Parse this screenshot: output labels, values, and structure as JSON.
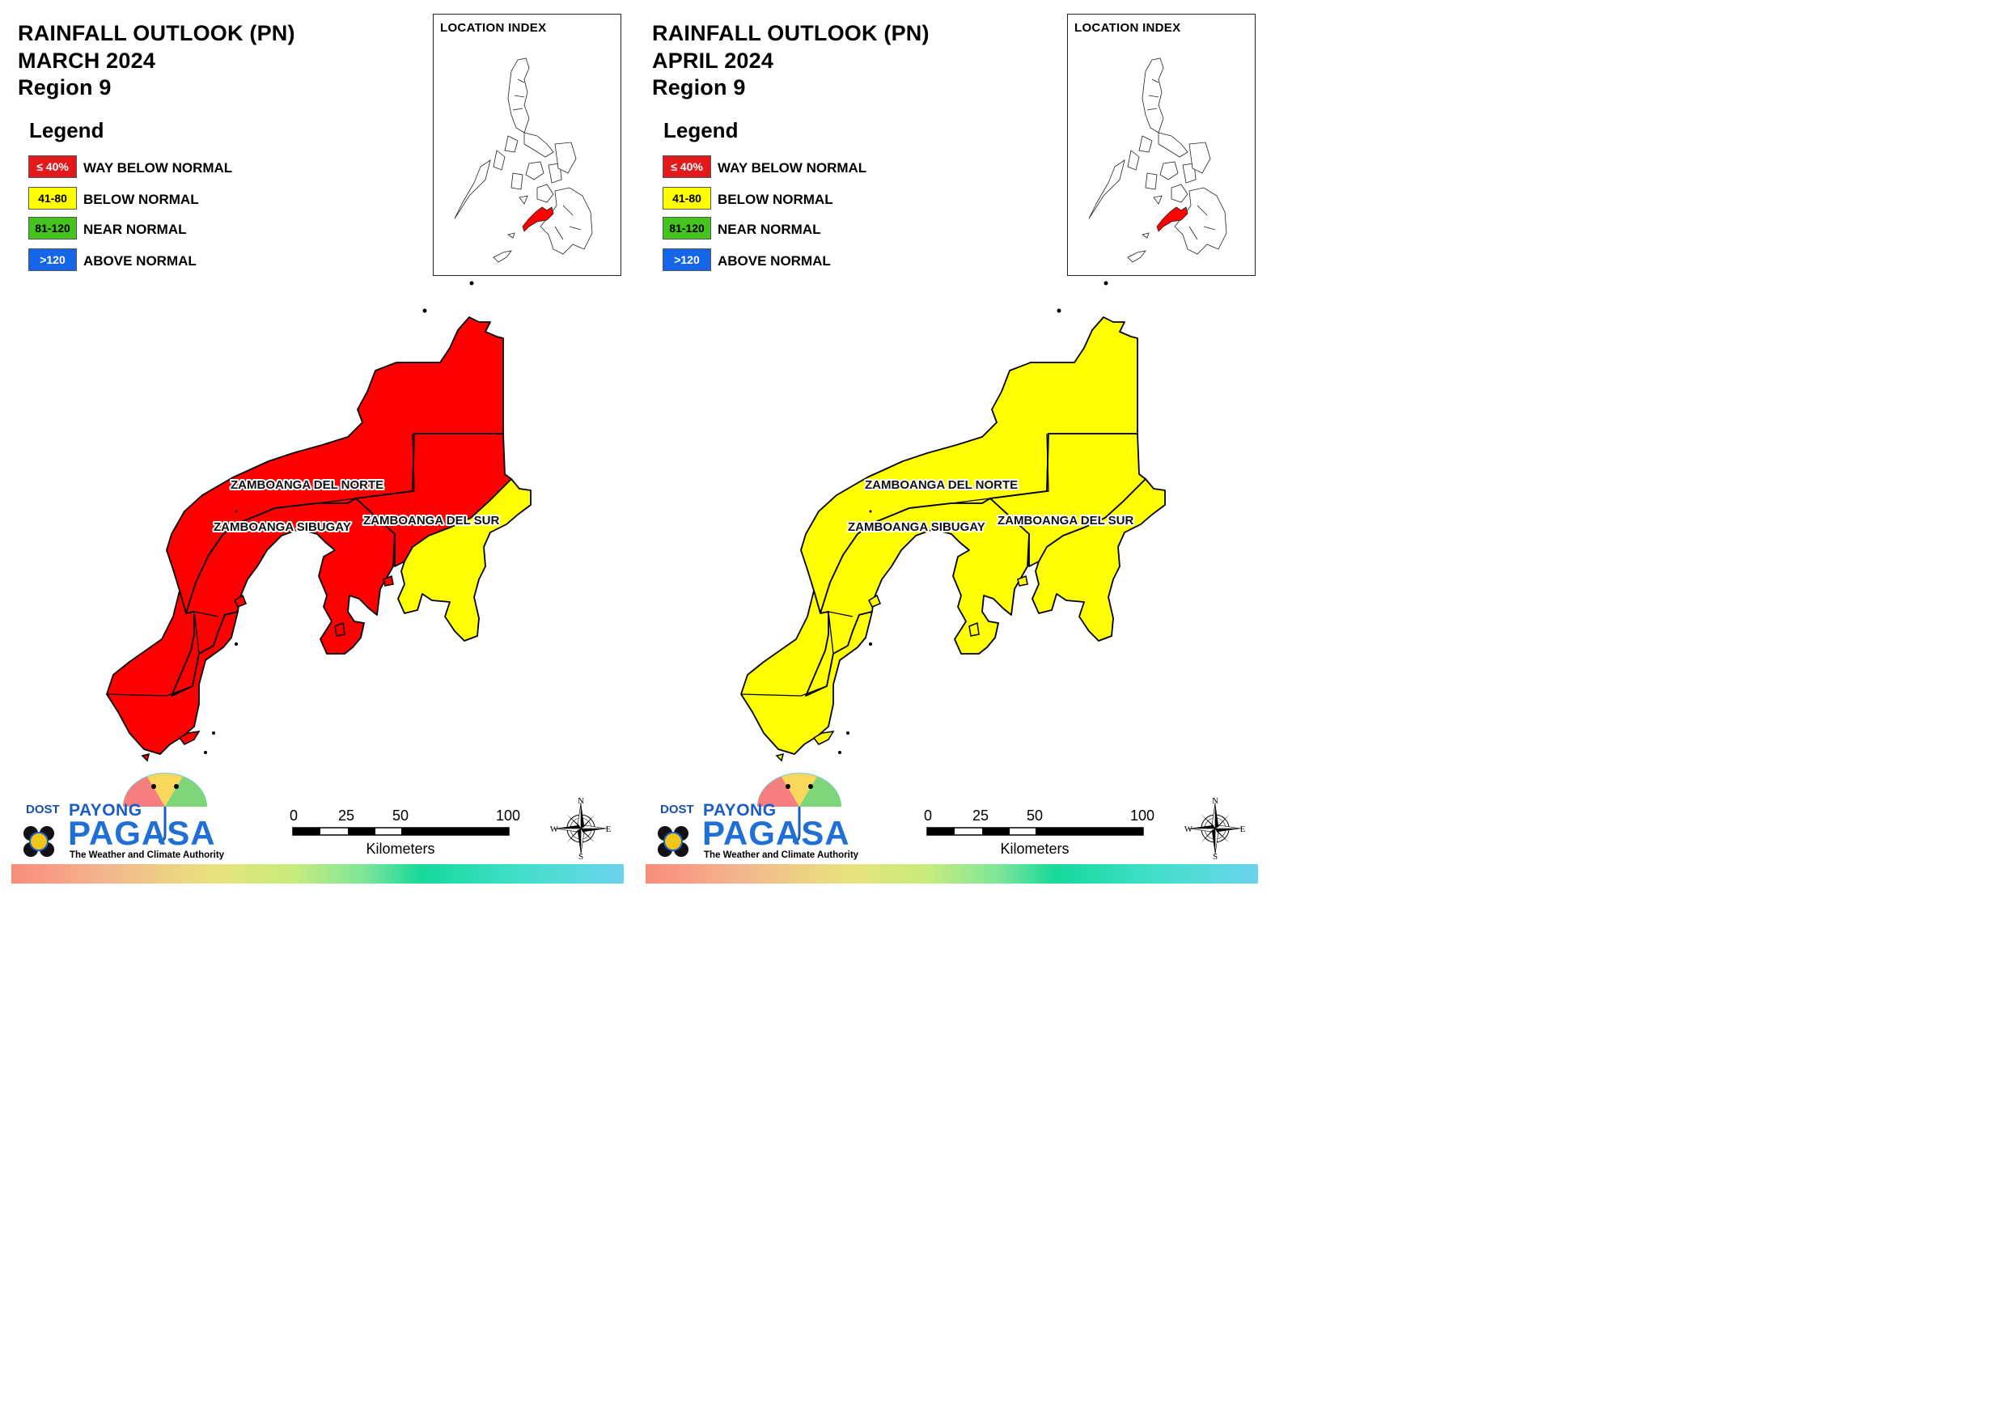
{
  "panels": [
    {
      "id": "march",
      "title_line1": "RAINFALL OUTLOOK (PN)",
      "title_line2": "MARCH 2024",
      "title_line3": "Region 9",
      "province_colors": {
        "zamboanga_del_norte": "#ff0000",
        "zamboanga_sibugay": "#ff0000",
        "zamboanga_del_sur_north": "#ff0000",
        "zamboanga_del_sur_south": "#ffff00",
        "zamboanga_city": "#ff0000"
      },
      "inset_region_color": "#ff0000"
    },
    {
      "id": "april",
      "title_line1": "RAINFALL OUTLOOK (PN)",
      "title_line2": "APRIL 2024",
      "title_line3": "Region 9",
      "province_colors": {
        "zamboanga_del_norte": "#ffff00",
        "zamboanga_sibugay": "#ffff00",
        "zamboanga_del_sur_north": "#ffff00",
        "zamboanga_del_sur_south": "#ffff00",
        "zamboanga_city": "#ffff00"
      },
      "inset_region_color": "#ff0000"
    }
  ],
  "legend": {
    "title": "Legend",
    "items": [
      {
        "code": "≤ 40%",
        "label": "WAY BELOW NORMAL",
        "color": "#e31a1c"
      },
      {
        "code": "41-80",
        "label": "BELOW NORMAL",
        "color": "#ffff00"
      },
      {
        "code": "81-120",
        "label": "NEAR NORMAL",
        "color": "#45c41d"
      },
      {
        "code": ">120",
        "label": "ABOVE NORMAL",
        "color": "#1565e6"
      }
    ]
  },
  "inset": {
    "title": "LOCATION INDEX"
  },
  "provinces": {
    "del_norte": "ZAMBOANGA DEL NORTE",
    "sibugay": "ZAMBOANGA SIBUGAY",
    "del_sur": "ZAMBOANGA DEL SUR"
  },
  "scale": {
    "ticks": [
      "0",
      "25",
      "50",
      "100"
    ],
    "unit": "Kilometers"
  },
  "compass": {
    "n": "N",
    "s": "S",
    "e": "E",
    "w": "W"
  },
  "logo": {
    "dost": "DOST",
    "payong": "PAYONG",
    "pagasa": "PAGASA",
    "tagline": "The Weather and Climate Authority"
  }
}
